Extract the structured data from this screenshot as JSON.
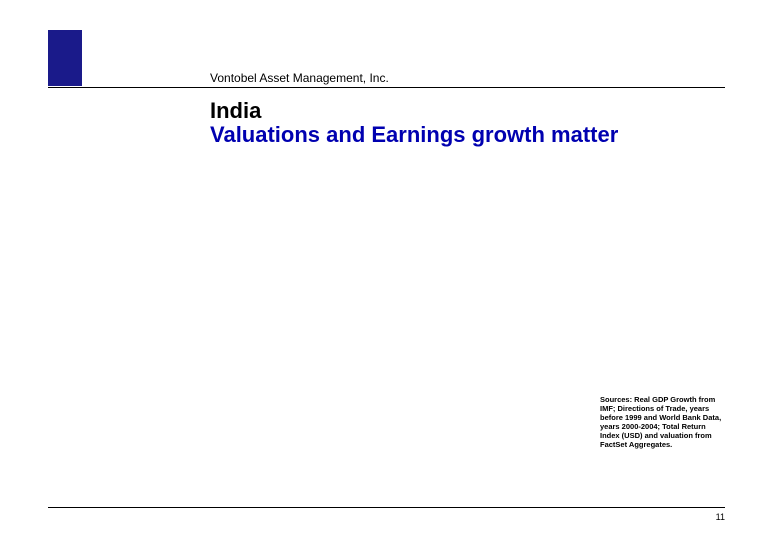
{
  "header": {
    "company": "Vontobel Asset Management, Inc."
  },
  "title": {
    "line1": "India",
    "line2": "Valuations and Earnings growth matter"
  },
  "sources": {
    "text": "Sources: Real GDP Growth from IMF; Directions of Trade, years before 1999 and World Bank Data, years 2000-2004; Total Return Index (USD) and valuation from FactSet Aggregates."
  },
  "footer": {
    "page_number": "11"
  },
  "colors": {
    "logo_bg": "#1a1a8a",
    "title_accent": "#0000b0",
    "rule": "#000000",
    "page_bg": "#ffffff"
  }
}
